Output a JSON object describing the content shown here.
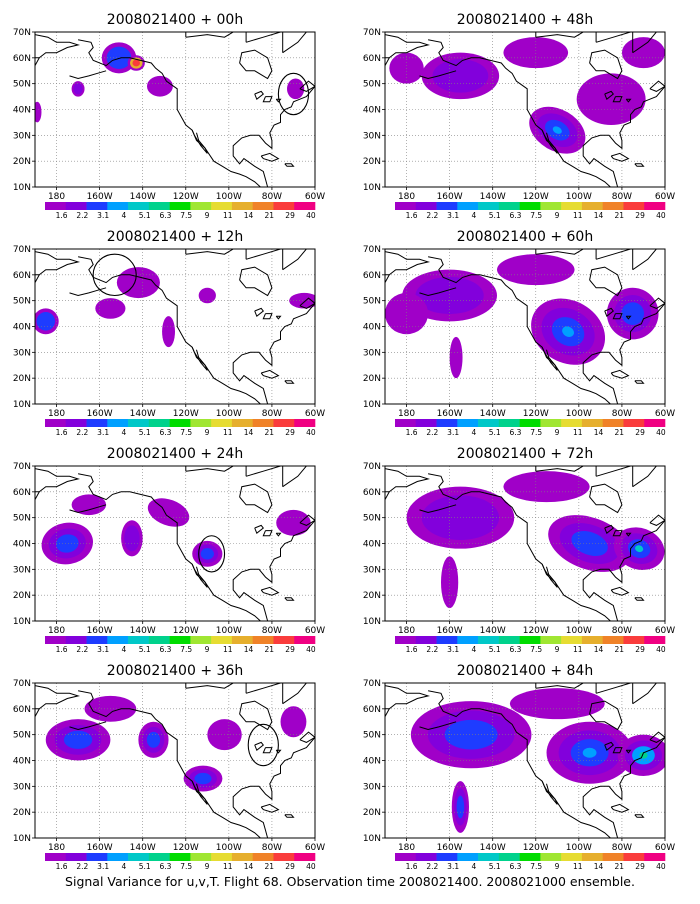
{
  "caption": "Signal Variance for u,v,T. Flight 68. Observation time 2008021400. 2008021000 ensemble.",
  "colorbar": {
    "labels": [
      "1.6",
      "2.2",
      "3.1",
      "4",
      "5.1",
      "6.3",
      "7.5",
      "9",
      "11",
      "14",
      "21",
      "29",
      "40"
    ],
    "colors": [
      "#a000c8",
      "#8200dc",
      "#1e3cff",
      "#00a0ff",
      "#00c8c8",
      "#00d28c",
      "#00dc00",
      "#a0e632",
      "#e6dc32",
      "#e6af2d",
      "#f08228",
      "#fa3c3c",
      "#f00082"
    ]
  },
  "axes": {
    "x_ticks": [
      "180",
      "160W",
      "140W",
      "120W",
      "100W",
      "80W",
      "60W"
    ],
    "y_ticks": [
      "10N",
      "20N",
      "30N",
      "40N",
      "50N",
      "60N",
      "70N"
    ]
  },
  "panels": [
    {
      "title": "2008021400 + 00h"
    },
    {
      "title": "2008021400 + 12h"
    },
    {
      "title": "2008021400 + 24h"
    },
    {
      "title": "2008021400 + 36h"
    },
    {
      "title": "2008021400 + 48h"
    },
    {
      "title": "2008021400 + 60h"
    },
    {
      "title": "2008021400 + 72h"
    },
    {
      "title": "2008021400 + 84h"
    }
  ],
  "colors": {
    "land_outline": "#000000",
    "grid": "#808080",
    "circle": "#000000"
  }
}
